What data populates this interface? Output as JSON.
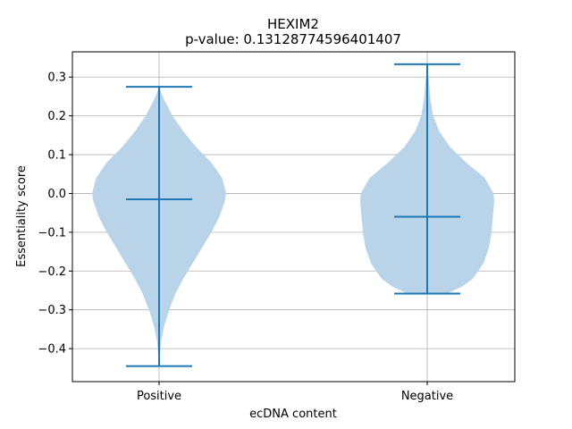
{
  "chart_data": {
    "type": "violin",
    "title": "HEXIM2",
    "subtitle": "p-value: 0.13128774596401407",
    "xlabel": "ecDNA content",
    "ylabel": "Essentiality score",
    "categories": [
      "Positive",
      "Negative"
    ],
    "ylim": [
      -0.485,
      0.365
    ],
    "yticks": [
      0.3,
      0.2,
      0.1,
      0.0,
      -0.1,
      -0.2,
      -0.3,
      -0.4
    ],
    "ytick_labels": [
      "0.3",
      "0.2",
      "0.1",
      "0.0",
      "−0.1",
      "−0.2",
      "−0.3",
      "−0.4"
    ],
    "grid": true,
    "colors": {
      "violin_fill": "#b9d3e9",
      "line": "#1f77b4",
      "grid": "#b0b0b0"
    },
    "violins": [
      {
        "category": "Positive",
        "min": -0.445,
        "max": 0.275,
        "median": -0.015,
        "density": [
          [
            -0.445,
            0.0
          ],
          [
            -0.42,
            0.01
          ],
          [
            -0.38,
            0.03
          ],
          [
            -0.34,
            0.08
          ],
          [
            -0.3,
            0.15
          ],
          [
            -0.26,
            0.24
          ],
          [
            -0.22,
            0.36
          ],
          [
            -0.18,
            0.5
          ],
          [
            -0.14,
            0.64
          ],
          [
            -0.1,
            0.78
          ],
          [
            -0.06,
            0.9
          ],
          [
            -0.02,
            0.98
          ],
          [
            0.0,
            1.0
          ],
          [
            0.04,
            0.94
          ],
          [
            0.08,
            0.78
          ],
          [
            0.12,
            0.55
          ],
          [
            0.16,
            0.36
          ],
          [
            0.2,
            0.2
          ],
          [
            0.24,
            0.08
          ],
          [
            0.26,
            0.03
          ],
          [
            0.275,
            0.0
          ]
        ]
      },
      {
        "category": "Negative",
        "min": -0.258,
        "max": 0.333,
        "median": -0.06,
        "density": [
          [
            -0.258,
            0.3
          ],
          [
            -0.24,
            0.52
          ],
          [
            -0.22,
            0.68
          ],
          [
            -0.18,
            0.84
          ],
          [
            -0.14,
            0.92
          ],
          [
            -0.1,
            0.96
          ],
          [
            -0.06,
            0.98
          ],
          [
            -0.02,
            1.0
          ],
          [
            0.0,
            0.99
          ],
          [
            0.04,
            0.86
          ],
          [
            0.08,
            0.58
          ],
          [
            0.12,
            0.34
          ],
          [
            0.16,
            0.18
          ],
          [
            0.2,
            0.09
          ],
          [
            0.24,
            0.05
          ],
          [
            0.28,
            0.03
          ],
          [
            0.31,
            0.015
          ],
          [
            0.333,
            0.0
          ]
        ]
      }
    ]
  }
}
